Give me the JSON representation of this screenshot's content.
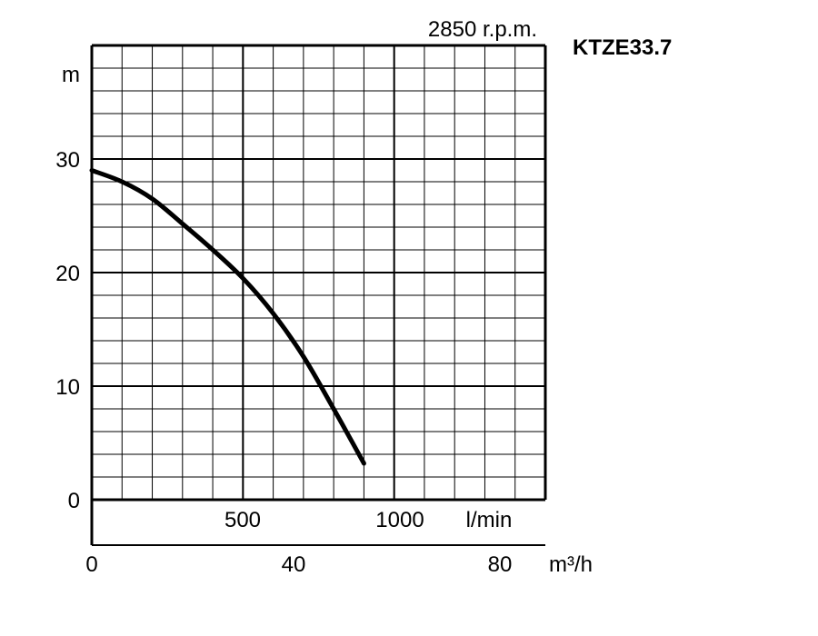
{
  "chart_data": {
    "type": "line",
    "title": "KTZE33.7",
    "subtitle": "2850 r.p.m.",
    "ylabel": "m",
    "x_units_primary": "l/min",
    "x_units_secondary": "m³/h",
    "ylim": [
      0,
      40
    ],
    "xlim_lmin": [
      0,
      1500
    ],
    "grid": true,
    "y_ticks": [
      "0",
      "10",
      "20",
      "30"
    ],
    "x_ticks_lmin": [
      "500",
      "1000"
    ],
    "x_ticks_m3h": [
      "0",
      "40",
      "80"
    ],
    "series": [
      {
        "x_lmin": [
          0,
          100,
          200,
          300,
          400,
          500,
          600,
          700,
          800,
          900
        ],
        "y_m": [
          29,
          28,
          26.5,
          24.3,
          22,
          19.5,
          16.4,
          12.6,
          8,
          3.2
        ]
      }
    ]
  }
}
